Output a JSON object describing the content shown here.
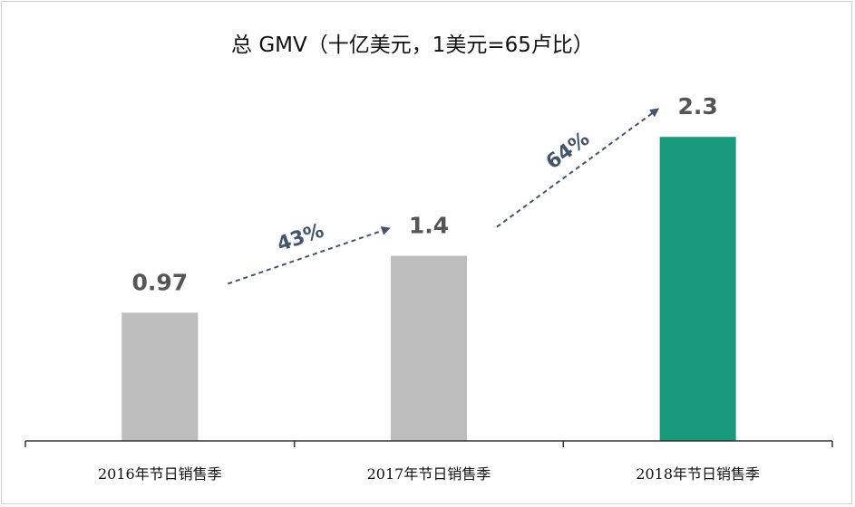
{
  "chart_data": {
    "type": "bar",
    "title": "总 GMV（十亿美元，1美元=65卢比）",
    "categories": [
      "2016年节日销售季",
      "2017年节日销售季",
      "2018年节日销售季"
    ],
    "values": [
      0.97,
      1.4,
      2.3
    ],
    "value_labels": [
      "0.97",
      "1.4",
      "2.3"
    ],
    "bar_colors": [
      "#bdbdbd",
      "#bdbdbd",
      "#1a9a7d"
    ],
    "growth_annotations": [
      {
        "from": 0,
        "to": 1,
        "label": "43%"
      },
      {
        "from": 1,
        "to": 2,
        "label": "64%"
      }
    ],
    "xlabel": "",
    "ylabel": "",
    "ylim": [
      0,
      2.6
    ],
    "grid": false,
    "legend": "none",
    "arrow_color": "#44546a"
  }
}
